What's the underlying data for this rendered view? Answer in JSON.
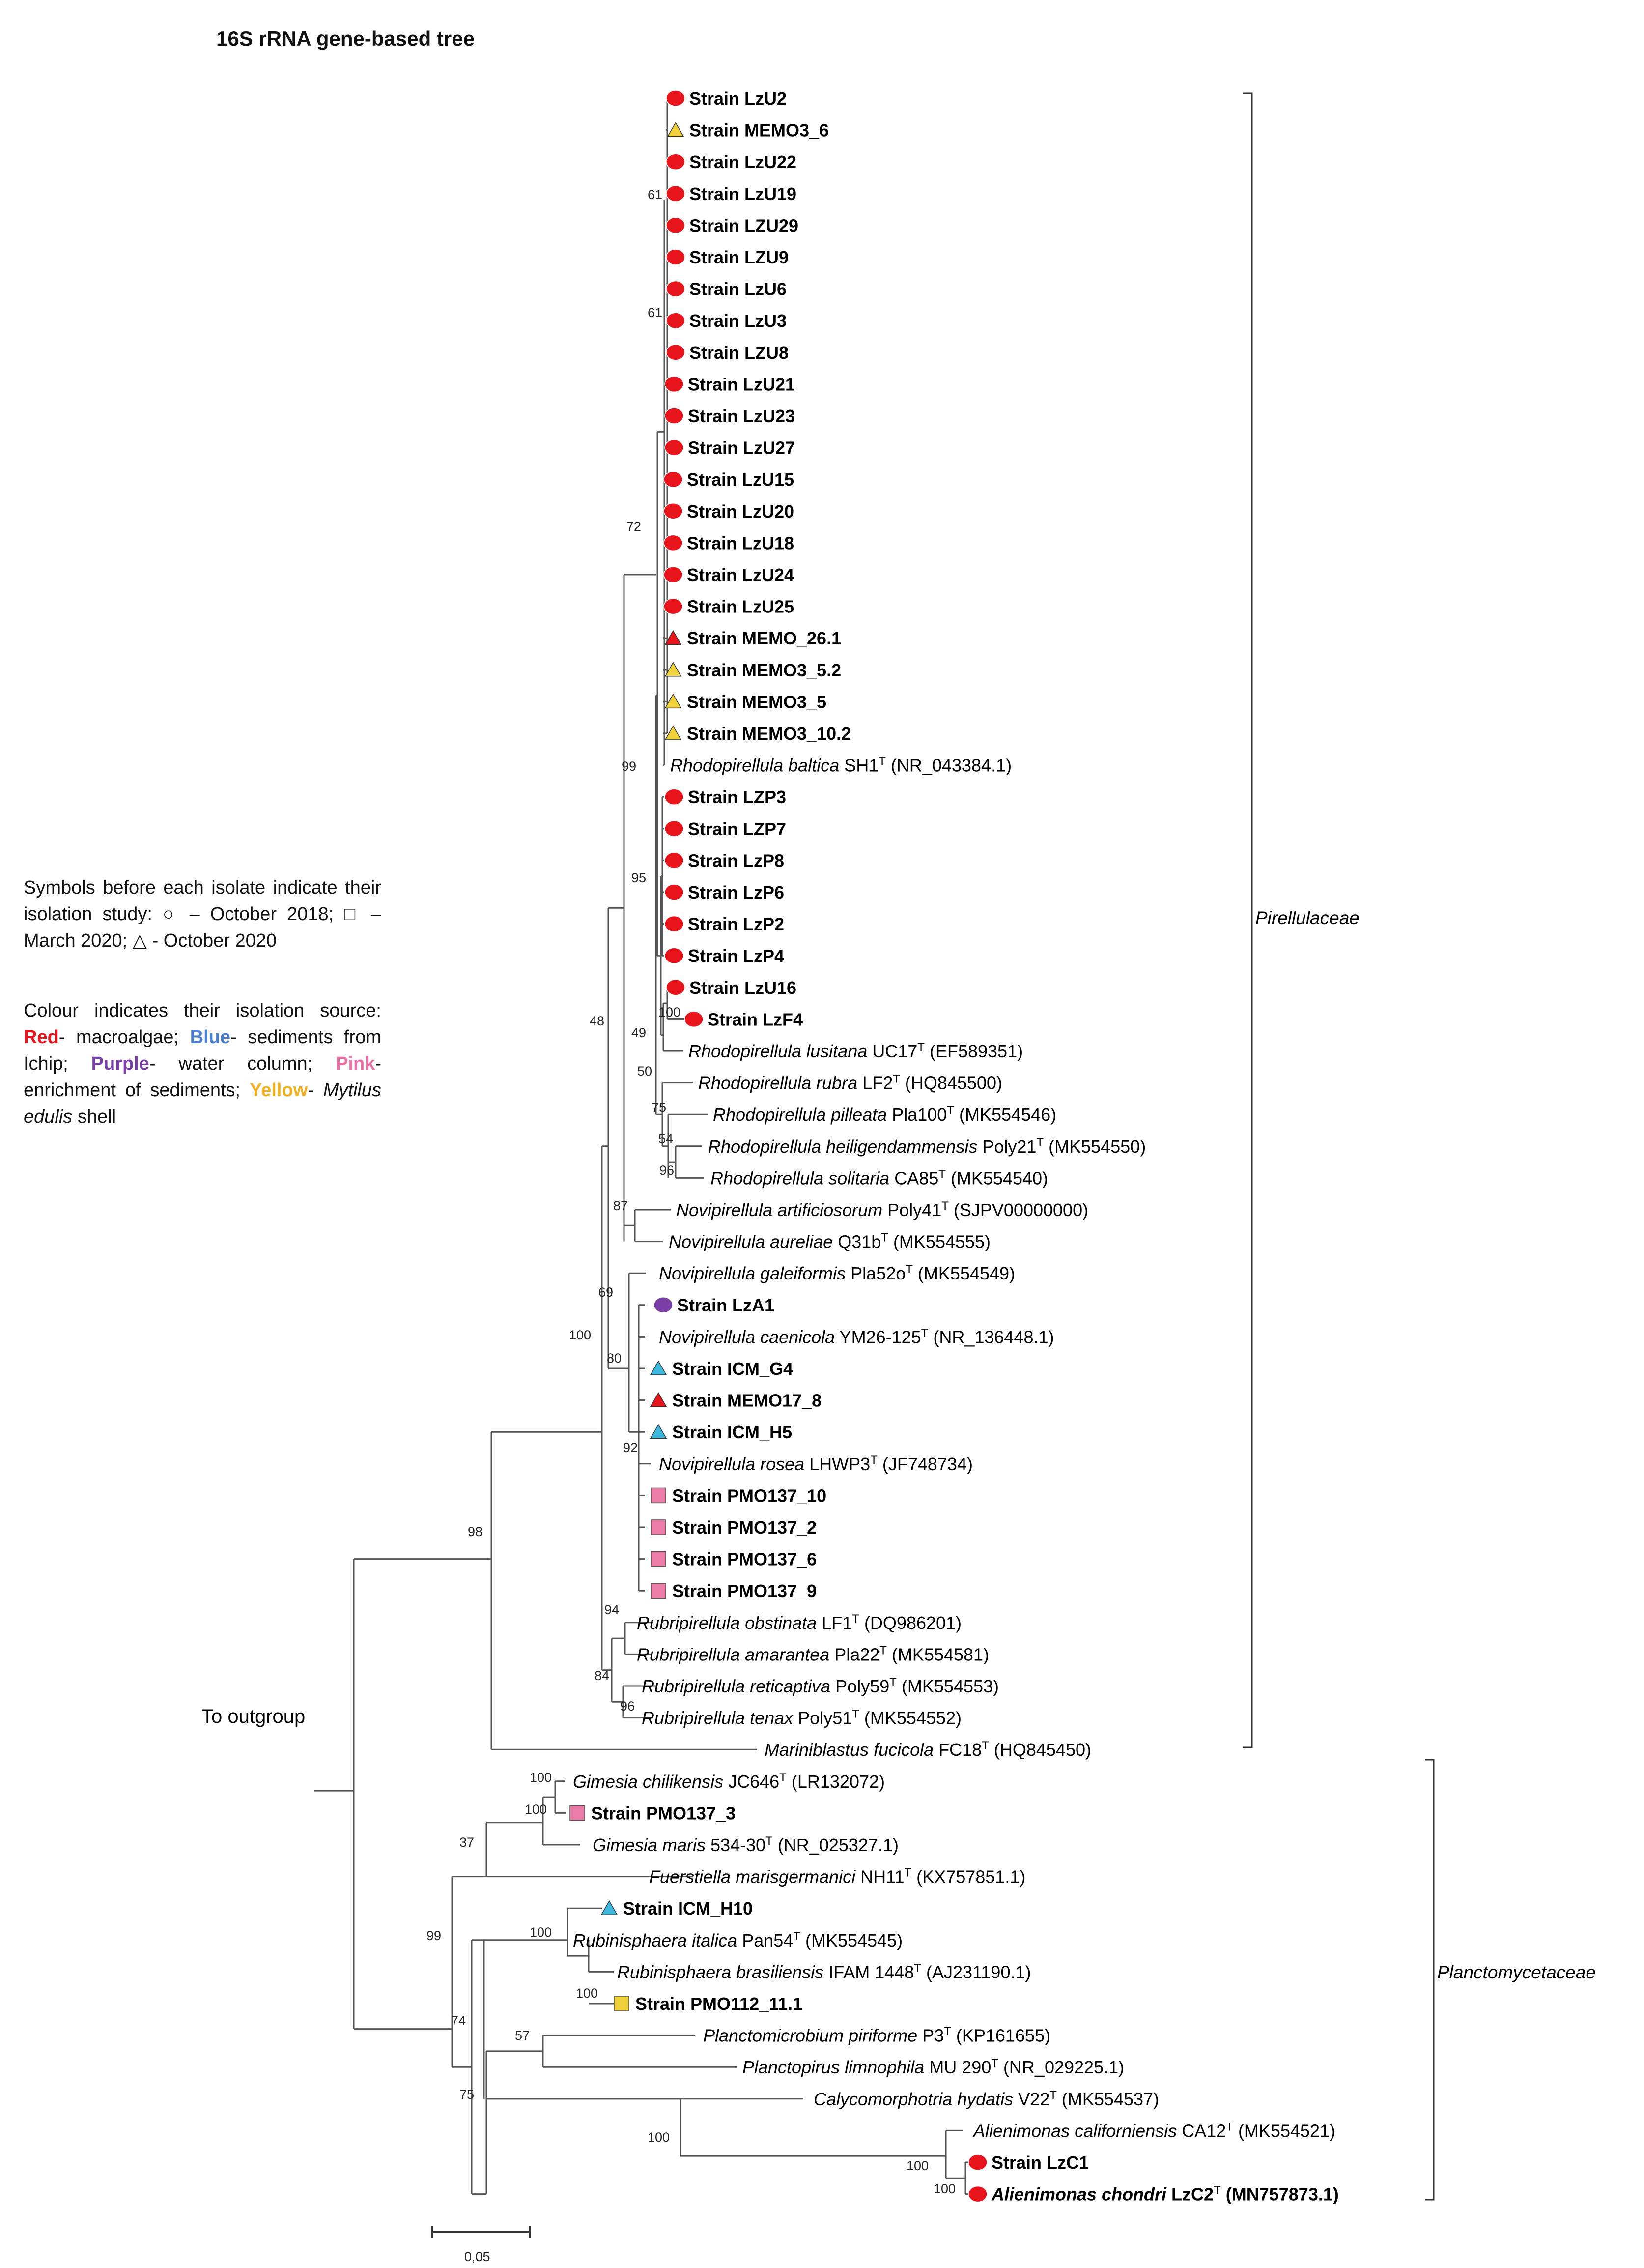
{
  "title": "16S rRNA gene-based tree",
  "legend": {
    "symbols_text": "Symbols before each isolate indicate their isolation study: ○ – October 2018; □ – March 2020; △ - October 2020",
    "colour_intro": "Colour indicates their isolation source:",
    "red_label": "Red",
    "red_text": "- macroalgae;",
    "blue_label": "Blue",
    "blue_text": "- sediments from Ichip;",
    "purple_label": "Purple",
    "purple_text": "- water column;",
    "pink_label": "Pink",
    "pink_text": "- enrichment of sediments;",
    "yellow_label": "Yellow",
    "yellow_text": "-",
    "yellow_italic": "Mytilus edulis",
    "yellow_tail": "shell"
  },
  "colors": {
    "red": "#e8141b",
    "blue": "#3fb8dd",
    "purple": "#7a3fa6",
    "pink": "#ec7ca8",
    "yellow": "#f2d23a",
    "branch": "#555555"
  },
  "families": [
    "Pirellulaceae",
    "Planctomycetaceae"
  ],
  "outgroup_label": "To outgroup",
  "scale_label": "0,05",
  "leaves": [
    {
      "kind": "strain",
      "name": "Strain LzU2",
      "marker": "circle",
      "color": "red"
    },
    {
      "kind": "strain",
      "name": "Strain MEMO3_6",
      "marker": "triangle",
      "color": "yellow"
    },
    {
      "kind": "strain",
      "name": "Strain LzU22",
      "marker": "circle",
      "color": "red"
    },
    {
      "kind": "strain",
      "name": "Strain LzU19",
      "marker": "circle",
      "color": "red"
    },
    {
      "kind": "strain",
      "name": "Strain LZU29",
      "marker": "circle",
      "color": "red"
    },
    {
      "kind": "strain",
      "name": "Strain LZU9",
      "marker": "circle",
      "color": "red"
    },
    {
      "kind": "strain",
      "name": "Strain LzU6",
      "marker": "circle",
      "color": "red"
    },
    {
      "kind": "strain",
      "name": "Strain LzU3",
      "marker": "circle",
      "color": "red"
    },
    {
      "kind": "strain",
      "name": "Strain LZU8",
      "marker": "circle",
      "color": "red"
    },
    {
      "kind": "strain",
      "name": "Strain LzU21",
      "marker": "circle",
      "color": "red"
    },
    {
      "kind": "strain",
      "name": "Strain LzU23",
      "marker": "circle",
      "color": "red"
    },
    {
      "kind": "strain",
      "name": "Strain LzU27",
      "marker": "circle",
      "color": "red"
    },
    {
      "kind": "strain",
      "name": "Strain LzU15",
      "marker": "circle",
      "color": "red"
    },
    {
      "kind": "strain",
      "name": "Strain LzU20",
      "marker": "circle",
      "color": "red"
    },
    {
      "kind": "strain",
      "name": "Strain LzU18",
      "marker": "circle",
      "color": "red"
    },
    {
      "kind": "strain",
      "name": "Strain LzU24",
      "marker": "circle",
      "color": "red"
    },
    {
      "kind": "strain",
      "name": "Strain LzU25",
      "marker": "circle",
      "color": "red"
    },
    {
      "kind": "strain",
      "name": "Strain MEMO_26.1",
      "marker": "triangle",
      "color": "red"
    },
    {
      "kind": "strain",
      "name": "Strain MEMO3_5.2",
      "marker": "triangle",
      "color": "yellow"
    },
    {
      "kind": "strain",
      "name": "Strain MEMO3_5",
      "marker": "triangle",
      "color": "yellow"
    },
    {
      "kind": "strain",
      "name": "Strain MEMO3_10.2",
      "marker": "triangle",
      "color": "yellow"
    },
    {
      "kind": "ref",
      "genus": "Rhodopirellula baltica",
      "strain": "SH1",
      "acc": "(NR_043384.1)"
    },
    {
      "kind": "strain",
      "name": "Strain LZP3",
      "marker": "circle",
      "color": "red"
    },
    {
      "kind": "strain",
      "name": "Strain LZP7",
      "marker": "circle",
      "color": "red"
    },
    {
      "kind": "strain",
      "name": "Strain LzP8",
      "marker": "circle",
      "color": "red"
    },
    {
      "kind": "strain",
      "name": "Strain LzP6",
      "marker": "circle",
      "color": "red"
    },
    {
      "kind": "strain",
      "name": "Strain LzP2",
      "marker": "circle",
      "color": "red"
    },
    {
      "kind": "strain",
      "name": "Strain LzP4",
      "marker": "circle",
      "color": "red"
    },
    {
      "kind": "strain",
      "name": "Strain LzU16",
      "marker": "circle",
      "color": "red"
    },
    {
      "kind": "strain",
      "name": "Strain LzF4",
      "marker": "circle",
      "color": "red"
    },
    {
      "kind": "ref",
      "genus": "Rhodopirellula lusitana",
      "strain": "UC17",
      "acc": "(EF589351)"
    },
    {
      "kind": "ref",
      "genus": "Rhodopirellula rubra",
      "strain": "LF2",
      "acc": "(HQ845500)"
    },
    {
      "kind": "ref",
      "genus": "Rhodopirellula pilleata",
      "strain": "Pla100",
      "acc": "(MK554546)"
    },
    {
      "kind": "ref",
      "genus": "Rhodopirellula heiligendammensis",
      "strain": "Poly21",
      "acc": "(MK554550)"
    },
    {
      "kind": "ref",
      "genus": "Rhodopirellula solitaria",
      "strain": "CA85",
      "acc": "(MK554540)"
    },
    {
      "kind": "ref",
      "genus": "Novipirellula artificiosorum",
      "strain": "Poly41",
      "acc": "(SJPV00000000)"
    },
    {
      "kind": "ref",
      "genus": "Novipirellula aureliae",
      "strain": "Q31b",
      "acc": "(MK554555)"
    },
    {
      "kind": "ref",
      "genus": "Novipirellula galeiformis",
      "strain": "Pla52o",
      "acc": "(MK554549)"
    },
    {
      "kind": "strain",
      "name": "Strain LzA1",
      "marker": "circle",
      "color": "purple"
    },
    {
      "kind": "ref",
      "genus": "Novipirellula caenicola",
      "strain": "YM26-125",
      "acc": "(NR_136448.1)"
    },
    {
      "kind": "strain",
      "name": "Strain ICM_G4",
      "marker": "triangle",
      "color": "blue"
    },
    {
      "kind": "strain",
      "name": "Strain MEMO17_8",
      "marker": "triangle",
      "color": "red"
    },
    {
      "kind": "strain",
      "name": "Strain ICM_H5",
      "marker": "triangle",
      "color": "blue"
    },
    {
      "kind": "ref",
      "genus": "Novipirellula rosea",
      "strain": "LHWP3",
      "acc": "(JF748734)"
    },
    {
      "kind": "strain",
      "name": "Strain PMO137_10",
      "marker": "square",
      "color": "pink"
    },
    {
      "kind": "strain",
      "name": "Strain PMO137_2",
      "marker": "square",
      "color": "pink"
    },
    {
      "kind": "strain",
      "name": "Strain PMO137_6",
      "marker": "square",
      "color": "pink"
    },
    {
      "kind": "strain",
      "name": "Strain PMO137_9",
      "marker": "square",
      "color": "pink"
    },
    {
      "kind": "ref",
      "genus": "Rubripirellula obstinata",
      "strain": "LF1",
      "acc": "(DQ986201)"
    },
    {
      "kind": "ref",
      "genus": "Rubripirellula amarantea",
      "strain": "Pla22",
      "acc": "(MK554581)"
    },
    {
      "kind": "ref",
      "genus": "Rubripirellula reticaptiva",
      "strain": "Poly59",
      "acc": "(MK554553)"
    },
    {
      "kind": "ref",
      "genus": "Rubripirellula tenax",
      "strain": "Poly51",
      "acc": "(MK554552)"
    },
    {
      "kind": "ref",
      "genus": "Mariniblastus fucicola",
      "strain": "FC18",
      "acc": "(HQ845450)"
    },
    {
      "kind": "ref",
      "genus": "Gimesia chilikensis",
      "strain": "JC646",
      "acc": "(LR132072)"
    },
    {
      "kind": "strain",
      "name": "Strain PMO137_3",
      "marker": "square",
      "color": "pink"
    },
    {
      "kind": "ref",
      "genus": "Gimesia maris",
      "strain": "534-30",
      "acc": "(NR_025327.1)"
    },
    {
      "kind": "ref",
      "genus": "Fuerstiella marisgermanici",
      "strain": "NH11",
      "acc": "(KX757851.1)"
    },
    {
      "kind": "strain",
      "name": "Strain ICM_H10",
      "marker": "triangle",
      "color": "blue"
    },
    {
      "kind": "ref",
      "genus": "Rubinisphaera italica",
      "strain": "Pan54",
      "acc": "(MK554545)"
    },
    {
      "kind": "ref",
      "genus": "Rubinisphaera brasiliensis",
      "strain": "IFAM 1448",
      "acc": "(AJ231190.1)"
    },
    {
      "kind": "strain",
      "name": "Strain PMO112_11.1",
      "marker": "square",
      "color": "yellow"
    },
    {
      "kind": "ref",
      "genus": "Planctomicrobium piriforme",
      "strain": "P3",
      "acc": "(KP161655)"
    },
    {
      "kind": "ref",
      "genus": "Planctopirus limnophila",
      "strain": "MU 290",
      "acc": "(NR_029225.1)"
    },
    {
      "kind": "ref",
      "genus": "Calycomorphotria hydatis",
      "strain": "V22",
      "acc": "(MK554537)"
    },
    {
      "kind": "ref",
      "genus": "Alienimonas californiensis",
      "strain": "CA12",
      "acc": "(MK554521)"
    },
    {
      "kind": "strain",
      "name": "Strain LzC1",
      "marker": "circle",
      "color": "red"
    },
    {
      "kind": "refbold",
      "genus": "Alienimonas chondri",
      "strain": "LzC2",
      "acc": "(MN757873.1)",
      "marker": "circle",
      "color": "red"
    }
  ],
  "bootstrap": [
    "61",
    "61",
    "72",
    "99",
    "95",
    "100",
    "49",
    "50",
    "75",
    "54",
    "96",
    "48",
    "87",
    "69",
    "80",
    "92",
    "100",
    "94",
    "84",
    "96",
    "98",
    "100",
    "100",
    "37",
    "99",
    "100",
    "100",
    "74",
    "57",
    "75",
    "100",
    "100",
    "100"
  ],
  "superscript": "T"
}
